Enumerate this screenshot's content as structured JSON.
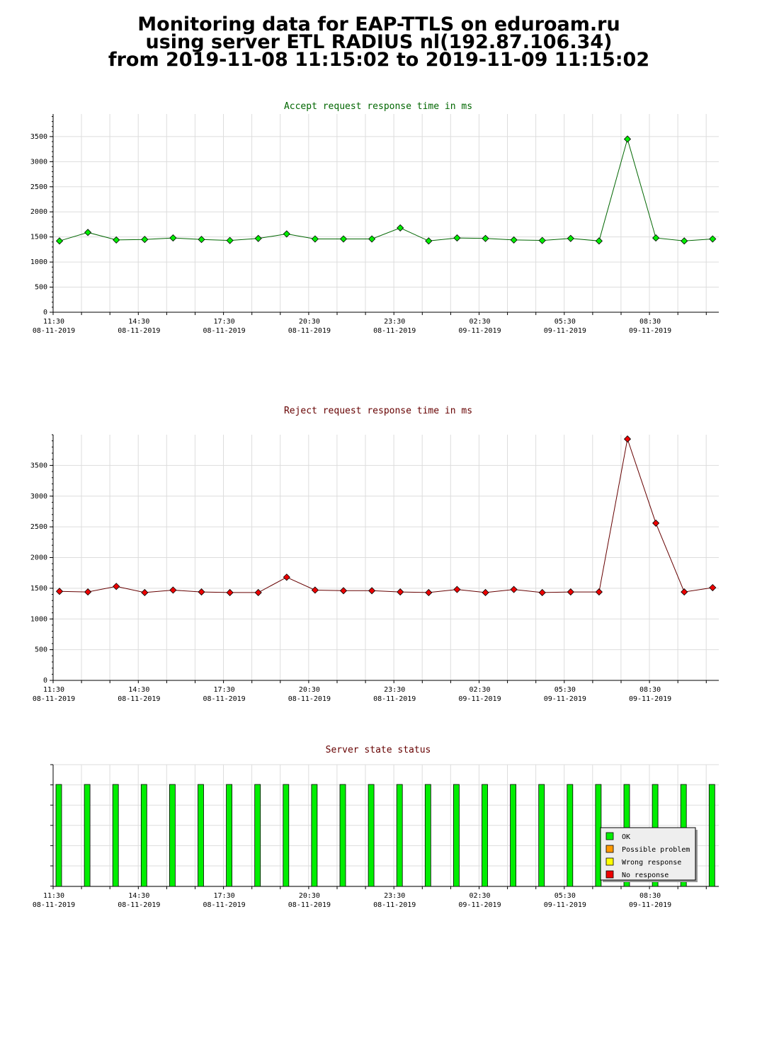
{
  "page": {
    "title_lines": [
      "Monitoring data for EAP-TTLS on eduroam.ru",
      "using server ETL RADIUS nl(192.87.106.34)",
      "from 2019-11-08 11:15:02 to 2019-11-09 11:15:02"
    ]
  },
  "chart_data": [
    {
      "type": "line",
      "title": "Accept request response time in ms",
      "x_tick_labels": [
        {
          "time": "11:30",
          "date": "08-11-2019"
        },
        {
          "time": "14:30",
          "date": "08-11-2019"
        },
        {
          "time": "17:30",
          "date": "08-11-2019"
        },
        {
          "time": "20:30",
          "date": "08-11-2019"
        },
        {
          "time": "23:30",
          "date": "08-11-2019"
        },
        {
          "time": "02:30",
          "date": "09-11-2019"
        },
        {
          "time": "05:30",
          "date": "09-11-2019"
        },
        {
          "time": "08:30",
          "date": "09-11-2019"
        }
      ],
      "x": [
        "11:15",
        "12:15",
        "13:15",
        "14:15",
        "15:15",
        "16:15",
        "17:15",
        "18:15",
        "19:15",
        "20:15",
        "21:15",
        "22:15",
        "23:15",
        "00:15",
        "01:15",
        "02:15",
        "03:15",
        "04:15",
        "05:15",
        "06:15",
        "07:15",
        "08:15",
        "09:15",
        "10:15"
      ],
      "values": [
        1420,
        1590,
        1440,
        1450,
        1480,
        1450,
        1430,
        1470,
        1560,
        1460,
        1460,
        1460,
        1680,
        1420,
        1480,
        1470,
        1440,
        1430,
        1470,
        1420,
        3450,
        1480,
        1420,
        1460
      ],
      "y_ticks": [
        0,
        500,
        1000,
        1500,
        2000,
        2500,
        3000,
        3500
      ],
      "ylim": [
        0,
        3950
      ],
      "grid": true,
      "line_color": "#006600",
      "marker_color": "#00ee00",
      "title_color": "#006600"
    },
    {
      "type": "line",
      "title": "Reject request response time in ms",
      "x_tick_labels": [
        {
          "time": "11:30",
          "date": "08-11-2019"
        },
        {
          "time": "14:30",
          "date": "08-11-2019"
        },
        {
          "time": "17:30",
          "date": "08-11-2019"
        },
        {
          "time": "20:30",
          "date": "08-11-2019"
        },
        {
          "time": "23:30",
          "date": "08-11-2019"
        },
        {
          "time": "02:30",
          "date": "09-11-2019"
        },
        {
          "time": "05:30",
          "date": "09-11-2019"
        },
        {
          "time": "08:30",
          "date": "09-11-2019"
        }
      ],
      "x": [
        "11:15",
        "12:15",
        "13:15",
        "14:15",
        "15:15",
        "16:15",
        "17:15",
        "18:15",
        "19:15",
        "20:15",
        "21:15",
        "22:15",
        "23:15",
        "00:15",
        "01:15",
        "02:15",
        "03:15",
        "04:15",
        "05:15",
        "06:15",
        "07:15",
        "08:15",
        "09:15",
        "10:15"
      ],
      "values": [
        1450,
        1440,
        1530,
        1430,
        1470,
        1440,
        1430,
        1430,
        1680,
        1470,
        1460,
        1460,
        1440,
        1430,
        1480,
        1430,
        1480,
        1430,
        1440,
        1440,
        3930,
        2560,
        1440,
        1510
      ],
      "y_ticks": [
        0,
        500,
        1000,
        1500,
        2000,
        2500,
        3000,
        3500
      ],
      "ylim": [
        0,
        4000
      ],
      "grid": true,
      "line_color": "#660000",
      "marker_color": "#ee0000",
      "title_color": "#660000"
    },
    {
      "type": "bar",
      "title": "Server state status",
      "x_tick_labels": [
        {
          "time": "11:30",
          "date": "08-11-2019"
        },
        {
          "time": "14:30",
          "date": "08-11-2019"
        },
        {
          "time": "17:30",
          "date": "08-11-2019"
        },
        {
          "time": "20:30",
          "date": "08-11-2019"
        },
        {
          "time": "23:30",
          "date": "08-11-2019"
        },
        {
          "time": "02:30",
          "date": "09-11-2019"
        },
        {
          "time": "05:30",
          "date": "09-11-2019"
        },
        {
          "time": "08:30",
          "date": "09-11-2019"
        }
      ],
      "x": [
        "11:15",
        "12:15",
        "13:15",
        "14:15",
        "15:15",
        "16:15",
        "17:15",
        "18:15",
        "19:15",
        "20:15",
        "21:15",
        "22:15",
        "23:15",
        "00:15",
        "01:15",
        "02:15",
        "03:15",
        "04:15",
        "05:15",
        "06:15",
        "07:15",
        "08:15",
        "09:15",
        "10:15"
      ],
      "states": [
        "OK",
        "OK",
        "OK",
        "OK",
        "OK",
        "OK",
        "OK",
        "OK",
        "OK",
        "OK",
        "OK",
        "OK",
        "OK",
        "OK",
        "OK",
        "OK",
        "OK",
        "OK",
        "OK",
        "OK",
        "OK",
        "OK",
        "OK",
        "OK"
      ],
      "grid": true,
      "title_color": "#660000",
      "legend_placement": "bottom-right",
      "legend": [
        {
          "label": "OK",
          "color": "#00ee00"
        },
        {
          "label": "Possible problem",
          "color": "#ff9900"
        },
        {
          "label": "Wrong response",
          "color": "#ffff00"
        },
        {
          "label": "No response",
          "color": "#ee0000"
        }
      ]
    }
  ]
}
